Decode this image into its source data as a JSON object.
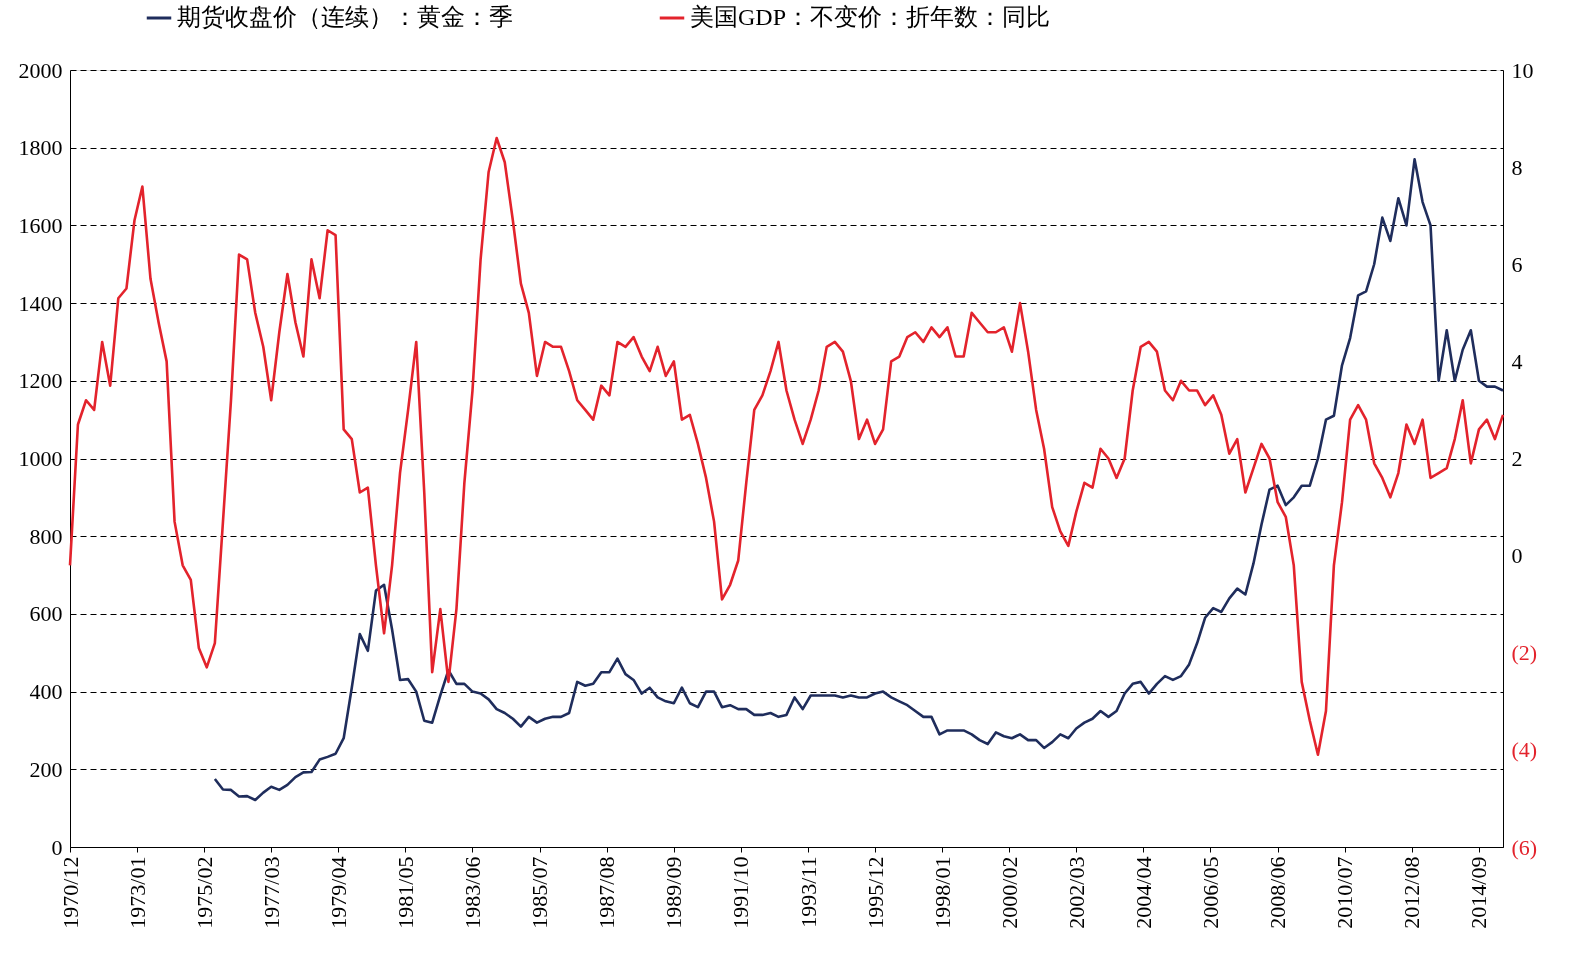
{
  "chart_data": {
    "type": "line",
    "x": [
      "1970-12",
      "1971-03",
      "1971-06",
      "1971-09",
      "1971-12",
      "1972-03",
      "1972-06",
      "1972-09",
      "1972-12",
      "1973-03",
      "1973-06",
      "1973-09",
      "1973-12",
      "1974-03",
      "1974-06",
      "1974-09",
      "1974-12",
      "1975-03",
      "1975-06",
      "1975-09",
      "1975-12",
      "1976-03",
      "1976-06",
      "1976-09",
      "1976-12",
      "1977-03",
      "1977-06",
      "1977-09",
      "1977-12",
      "1978-03",
      "1978-06",
      "1978-09",
      "1978-12",
      "1979-03",
      "1979-06",
      "1979-09",
      "1979-12",
      "1980-03",
      "1980-06",
      "1980-09",
      "1980-12",
      "1981-03",
      "1981-06",
      "1981-09",
      "1981-12",
      "1982-03",
      "1982-06",
      "1982-09",
      "1982-12",
      "1983-03",
      "1983-06",
      "1983-09",
      "1983-12",
      "1984-03",
      "1984-06",
      "1984-09",
      "1984-12",
      "1985-03",
      "1985-06",
      "1985-09",
      "1985-12",
      "1986-03",
      "1986-06",
      "1986-09",
      "1986-12",
      "1987-03",
      "1987-06",
      "1987-09",
      "1987-12",
      "1988-03",
      "1988-06",
      "1988-09",
      "1988-12",
      "1989-03",
      "1989-06",
      "1989-09",
      "1989-12",
      "1990-03",
      "1990-06",
      "1990-09",
      "1990-12",
      "1991-03",
      "1991-06",
      "1991-09",
      "1991-12",
      "1992-03",
      "1992-06",
      "1992-09",
      "1992-12",
      "1993-03",
      "1993-06",
      "1993-09",
      "1993-12",
      "1994-03",
      "1994-06",
      "1994-09",
      "1994-12",
      "1995-03",
      "1995-06",
      "1995-09",
      "1995-12",
      "1996-03",
      "1996-06",
      "1996-09",
      "1996-12",
      "1997-03",
      "1997-06",
      "1997-09",
      "1997-12",
      "1998-03",
      "1998-06",
      "1998-09",
      "1998-12",
      "1999-03",
      "1999-06",
      "1999-09",
      "1999-12",
      "2000-03",
      "2000-06",
      "2000-09",
      "2000-12",
      "2001-03",
      "2001-06",
      "2001-09",
      "2001-12",
      "2002-03",
      "2002-06",
      "2002-09",
      "2002-12",
      "2003-03",
      "2003-06",
      "2003-09",
      "2003-12",
      "2004-03",
      "2004-06",
      "2004-09",
      "2004-12",
      "2005-03",
      "2005-06",
      "2005-09",
      "2005-12",
      "2006-03",
      "2006-06",
      "2006-09",
      "2006-12",
      "2007-03",
      "2007-06",
      "2007-09",
      "2007-12",
      "2008-03",
      "2008-06",
      "2008-09",
      "2008-12",
      "2009-03",
      "2009-06",
      "2009-09",
      "2009-12",
      "2010-03",
      "2010-06",
      "2010-09",
      "2010-12",
      "2011-03",
      "2011-06",
      "2011-09",
      "2011-12",
      "2012-03",
      "2012-06",
      "2012-09",
      "2012-12",
      "2013-03",
      "2013-06",
      "2013-09",
      "2013-12",
      "2014-03",
      "2014-06",
      "2014-09",
      "2014-12",
      "2015-03",
      "2015-06"
    ],
    "series": [
      {
        "name": "期货收盘价（连续）：黄金：季",
        "color": "#1f2d5c",
        "values": [
          null,
          null,
          null,
          null,
          null,
          null,
          null,
          null,
          null,
          null,
          null,
          null,
          null,
          null,
          null,
          null,
          null,
          null,
          175,
          148,
          147,
          130,
          131,
          121,
          140,
          155,
          147,
          160,
          180,
          192,
          193,
          225,
          232,
          240,
          280,
          410,
          548,
          505,
          660,
          675,
          560,
          430,
          432,
          400,
          325,
          320,
          390,
          455,
          420,
          420,
          400,
          395,
          380,
          355,
          345,
          330,
          310,
          335,
          320,
          330,
          335,
          335,
          345,
          425,
          415,
          420,
          450,
          450,
          485,
          445,
          430,
          395,
          410,
          385,
          375,
          370,
          410,
          370,
          360,
          400,
          400,
          360,
          365,
          355,
          355,
          340,
          340,
          345,
          335,
          340,
          385,
          355,
          390,
          390,
          390,
          390,
          385,
          390,
          385,
          385,
          395,
          400,
          385,
          375,
          365,
          350,
          335,
          335,
          290,
          300,
          300,
          300,
          290,
          275,
          265,
          295,
          285,
          280,
          290,
          275,
          275,
          255,
          270,
          290,
          280,
          305,
          320,
          330,
          350,
          335,
          350,
          395,
          420,
          425,
          395,
          420,
          440,
          430,
          440,
          470,
          525,
          590,
          615,
          605,
          640,
          665,
          650,
          730,
          830,
          920,
          930,
          880,
          900,
          930,
          930,
          1000,
          1100,
          1110,
          1240,
          1310,
          1420,
          1430,
          1500,
          1620,
          1560,
          1670,
          1600,
          1770,
          1660,
          1600,
          1200,
          1330,
          1200,
          1280,
          1330,
          1200,
          1185,
          1185,
          1175
        ]
      },
      {
        "name": "美国GDP：不变价：折年数：同比",
        "color": "#e3232c",
        "axis": "y2",
        "values": [
          -0.2,
          2.7,
          3.2,
          3.0,
          4.4,
          3.5,
          5.3,
          5.5,
          6.9,
          7.6,
          5.7,
          4.8,
          4.0,
          0.7,
          -0.2,
          -0.5,
          -1.9,
          -2.3,
          -1.8,
          0.7,
          3.2,
          6.2,
          6.1,
          5.0,
          4.3,
          3.2,
          4.6,
          5.8,
          4.8,
          4.1,
          6.1,
          5.3,
          6.7,
          6.6,
          2.6,
          2.4,
          1.3,
          1.4,
          -0.2,
          -1.6,
          -0.2,
          1.7,
          3.0,
          4.4,
          1.3,
          -2.4,
          -1.1,
          -2.6,
          -1.1,
          1.5,
          3.4,
          6.1,
          7.9,
          8.6,
          8.1,
          6.9,
          5.6,
          5.0,
          3.7,
          4.4,
          4.3,
          4.3,
          3.8,
          3.2,
          3.0,
          2.8,
          3.5,
          3.3,
          4.4,
          4.3,
          4.5,
          4.1,
          3.8,
          4.3,
          3.7,
          4.0,
          2.8,
          2.9,
          2.3,
          1.6,
          0.7,
          -0.9,
          -0.6,
          -0.1,
          1.5,
          3.0,
          3.3,
          3.8,
          4.4,
          3.4,
          2.8,
          2.3,
          2.8,
          3.4,
          4.3,
          4.4,
          4.2,
          3.6,
          2.4,
          2.8,
          2.3,
          2.6,
          4.0,
          4.1,
          4.5,
          4.6,
          4.4,
          4.7,
          4.5,
          4.7,
          4.1,
          4.1,
          5.0,
          4.8,
          4.6,
          4.6,
          4.7,
          4.2,
          5.2,
          4.2,
          3.0,
          2.2,
          1.0,
          0.5,
          0.2,
          0.9,
          1.5,
          1.4,
          2.2,
          2.0,
          1.6,
          2.0,
          3.4,
          4.3,
          4.4,
          4.2,
          3.4,
          3.2,
          3.6,
          3.4,
          3.4,
          3.1,
          3.3,
          2.9,
          2.1,
          2.4,
          1.3,
          1.8,
          2.3,
          2.0,
          1.1,
          0.8,
          -0.2,
          -2.6,
          -3.4,
          -4.1,
          -3.2,
          -0.2,
          1.1,
          2.8,
          3.1,
          2.8,
          1.9,
          1.6,
          1.2,
          1.7,
          2.7,
          2.3,
          2.8,
          1.6,
          1.7,
          1.8,
          2.4,
          3.2,
          1.9,
          2.6,
          2.8,
          2.4,
          2.9
        ]
      }
    ],
    "xlim": [
      "1970-12",
      "2015-06"
    ],
    "xticks": [
      {
        "value": "1970-12",
        "label": "1970/12"
      },
      {
        "value": "1973-01",
        "label": "1973/01"
      },
      {
        "value": "1975-02",
        "label": "1975/02"
      },
      {
        "value": "1977-03",
        "label": "1977/03"
      },
      {
        "value": "1979-04",
        "label": "1979/04"
      },
      {
        "value": "1981-05",
        "label": "1981/05"
      },
      {
        "value": "1983-06",
        "label": "1983/06"
      },
      {
        "value": "1985-07",
        "label": "1985/07"
      },
      {
        "value": "1987-08",
        "label": "1987/08"
      },
      {
        "value": "1989-09",
        "label": "1989/09"
      },
      {
        "value": "1991-10",
        "label": "1991/10"
      },
      {
        "value": "1993-11",
        "label": "1993/11"
      },
      {
        "value": "1995-12",
        "label": "1995/12"
      },
      {
        "value": "1998-01",
        "label": "1998/01"
      },
      {
        "value": "2000-02",
        "label": "2000/02"
      },
      {
        "value": "2002-03",
        "label": "2002/03"
      },
      {
        "value": "2004-04",
        "label": "2004/04"
      },
      {
        "value": "2006-05",
        "label": "2006/05"
      },
      {
        "value": "2008-06",
        "label": "2008/06"
      },
      {
        "value": "2010-07",
        "label": "2010/07"
      },
      {
        "value": "2012-08",
        "label": "2012/08"
      },
      {
        "value": "2014-09",
        "label": "2014/09"
      }
    ],
    "ylim": [
      0,
      2000
    ],
    "yticks": [
      0,
      200,
      400,
      600,
      800,
      1000,
      1200,
      1400,
      1600,
      1800,
      2000
    ],
    "y2lim": [
      -6,
      10
    ],
    "y2ticks": [
      {
        "value": -6,
        "label": "(6)"
      },
      {
        "value": -4,
        "label": "(4)"
      },
      {
        "value": -2,
        "label": "(2)"
      },
      0,
      2,
      4,
      6,
      8,
      10
    ],
    "grid": "y",
    "legend": "top",
    "line_style": "solid",
    "marker": "none"
  }
}
